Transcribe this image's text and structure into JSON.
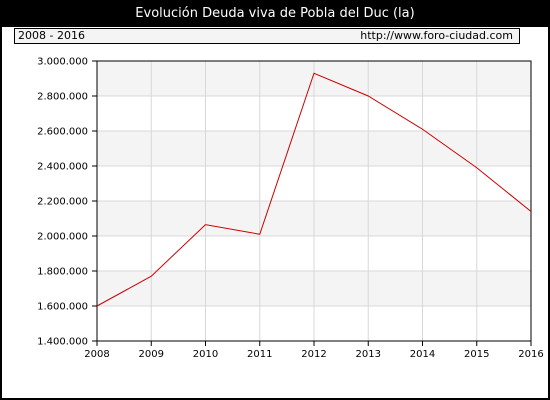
{
  "title": "Evolución Deuda viva de Pobla del Duc (la)",
  "info_bar": {
    "range": "2008 - 2016",
    "url": "http://www.foro-ciudad.com"
  },
  "chart_data": {
    "type": "line",
    "title": "Evolución Deuda viva de Pobla del Duc (la)",
    "xlabel": "",
    "ylabel": "",
    "x": [
      2008,
      2009,
      2010,
      2011,
      2012,
      2013,
      2014,
      2015,
      2016
    ],
    "x_tick_labels": [
      "2008",
      "2009",
      "2010",
      "2011",
      "2012",
      "2013",
      "2014",
      "2015",
      "2016"
    ],
    "y_ticks": [
      1400000,
      1600000,
      1800000,
      2000000,
      2200000,
      2400000,
      2600000,
      2800000,
      3000000
    ],
    "y_tick_labels": [
      "1.400.000",
      "1.600.000",
      "1.800.000",
      "2.000.000",
      "2.200.000",
      "2.400.000",
      "2.600.000",
      "2.800.000",
      "3.000.000"
    ],
    "ylim": [
      1400000,
      3000000
    ],
    "grid": true,
    "series": [
      {
        "values": [
          1600000,
          1770000,
          2065000,
          2010000,
          2930000,
          2800000,
          2610000,
          2390000,
          2140000
        ],
        "color": "#cc0000"
      }
    ]
  }
}
